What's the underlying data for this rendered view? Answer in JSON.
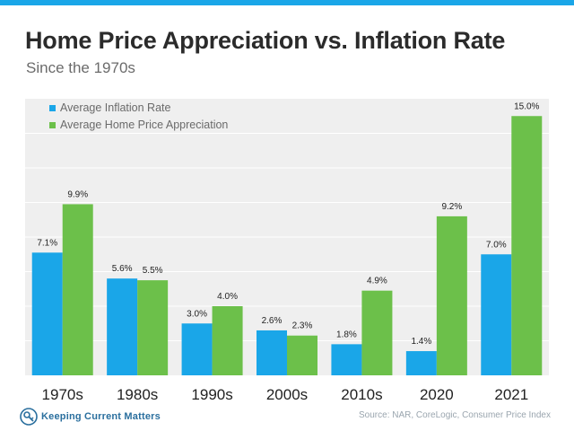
{
  "header": {
    "title": "Home Price Appreciation vs. Inflation Rate",
    "subtitle": "Since the 1970s"
  },
  "footer": {
    "brand": "Keeping Current Matters",
    "source": "Source: NAR, CoreLogic, Consumer Price Index",
    "logo_icon": "key-house-logo-icon"
  },
  "colors": {
    "stripe": "#1aa6e8",
    "inflation": "#1aa6e8",
    "appreciation": "#6cc04a",
    "plot_bg": "#efefef",
    "gridline": "#ffffff",
    "text": "#222222"
  },
  "chart_data": {
    "type": "bar",
    "title": "Home Price Appreciation vs. Inflation Rate",
    "subtitle": "Since the 1970s",
    "categories": [
      "1970s",
      "1980s",
      "1990s",
      "2000s",
      "2010s",
      "2020",
      "2021"
    ],
    "series": [
      {
        "name": "Average Inflation Rate",
        "values": [
          7.1,
          5.6,
          3.0,
          2.6,
          1.8,
          1.4,
          7.0
        ],
        "labels": [
          "7.1%",
          "5.6%",
          "3.0%",
          "2.6%",
          "1.8%",
          "1.4%",
          "7.0%"
        ]
      },
      {
        "name": "Average Home Price Appreciation",
        "values": [
          9.9,
          5.5,
          4.0,
          2.3,
          4.9,
          9.2,
          15.0
        ],
        "labels": [
          "9.9%",
          "5.5%",
          "4.0%",
          "2.3%",
          "4.9%",
          "9.2%",
          "15.0%"
        ]
      }
    ],
    "xlabel": "",
    "ylabel": "",
    "ylim": [
      0,
      16
    ],
    "grid": true,
    "legend": "top-left"
  }
}
